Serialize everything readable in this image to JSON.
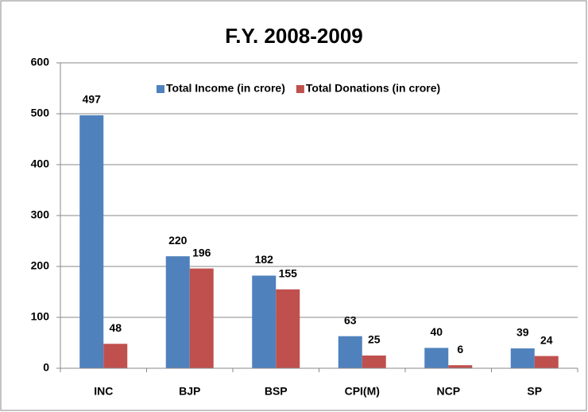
{
  "chart_data": {
    "type": "bar",
    "title": "F.Y. 2008-2009",
    "categories": [
      "INC",
      "BJP",
      "BSP",
      "CPI(M)",
      "NCP",
      "SP"
    ],
    "series": [
      {
        "name": "Total Income (in crore)",
        "color": "#4f81bd",
        "values": [
          497,
          220,
          182,
          63,
          40,
          39
        ]
      },
      {
        "name": "Total Donations (in crore)",
        "color": "#c0504d",
        "values": [
          48,
          196,
          155,
          25,
          6,
          24
        ]
      }
    ],
    "ylim": [
      0,
      600
    ],
    "yticks": [
      0,
      100,
      200,
      300,
      400,
      500,
      600
    ],
    "grid": true,
    "legend": "top"
  }
}
